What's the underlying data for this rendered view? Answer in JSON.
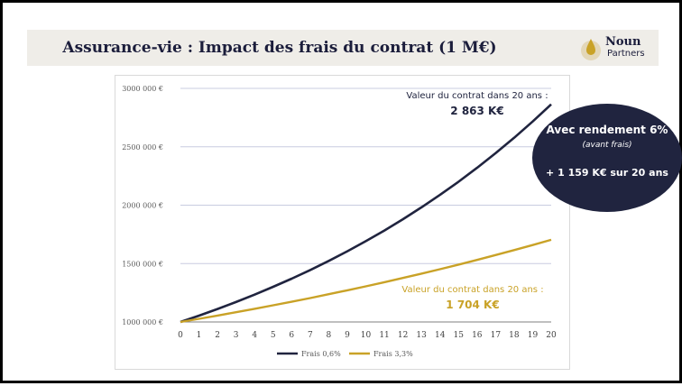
{
  "header": {
    "title": "Assurance-vie : Impact des frais du contrat (1 M€)",
    "logo": {
      "name": "Noun",
      "sub": "Partners"
    }
  },
  "bubble": {
    "line1": "Avec rendement 6%",
    "line2": "(avant frais)",
    "line3": "+ 1 159 K€ sur 20 ans"
  },
  "colors": {
    "navy": "#20243f",
    "gold": "#c9a227",
    "grid": "#c8cce0",
    "axis": "#7f7f7f"
  },
  "chart_data": {
    "type": "line",
    "x": [
      0,
      1,
      2,
      3,
      4,
      5,
      6,
      7,
      8,
      9,
      10,
      11,
      12,
      13,
      14,
      15,
      16,
      17,
      18,
      19,
      20
    ],
    "ylim": [
      1000000,
      3000000
    ],
    "y_ticks": [
      "1000 000 €",
      "1500 000 €",
      "2000 000 €",
      "2500 000 €",
      "3000 000 €"
    ],
    "y_tick_values": [
      1000000,
      1500000,
      2000000,
      2500000,
      3000000
    ],
    "grid": true,
    "legend": "bottom",
    "series": [
      {
        "name": "Frais 0,6%",
        "color": "#20243f",
        "values": [
          1000000,
          1054000,
          1110916,
          1170905,
          1234134,
          1300777,
          1371019,
          1445054,
          1523087,
          1605334,
          1692022,
          1783391,
          1879694,
          1981198,
          2088182,
          2200944,
          2319795,
          2445064,
          2577097,
          2716260,
          2862938
        ]
      },
      {
        "name": "Frais 3,3%",
        "color": "#c9a227",
        "values": [
          1000000,
          1027000,
          1054729,
          1083207,
          1112453,
          1142489,
          1173336,
          1205016,
          1237552,
          1270966,
          1305282,
          1340525,
          1376719,
          1413890,
          1452065,
          1491271,
          1531535,
          1572887,
          1615355,
          1658970,
          1703762
        ]
      }
    ],
    "annotations": [
      {
        "label": "Valeur du contrat dans 20 ans :",
        "value": "2 863 K€",
        "color": "#20243f"
      },
      {
        "label": "Valeur du contrat dans 20 ans :",
        "value": "1 704 K€",
        "color": "#c9a227"
      }
    ]
  }
}
